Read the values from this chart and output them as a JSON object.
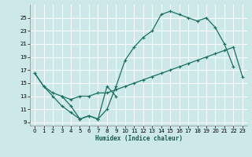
{
  "xlabel": "Humidex (Indice chaleur)",
  "bg_color": "#cce8e8",
  "line_color": "#1a7060",
  "grid_color": "#ffffff",
  "xlim": [
    -0.5,
    23.5
  ],
  "ylim": [
    8.5,
    27.0
  ],
  "yticks": [
    9,
    11,
    13,
    15,
    17,
    19,
    21,
    23,
    25
  ],
  "xticks": [
    0,
    1,
    2,
    3,
    4,
    5,
    6,
    7,
    8,
    9,
    10,
    11,
    12,
    13,
    14,
    15,
    16,
    17,
    18,
    19,
    20,
    21,
    22,
    23
  ],
  "curve1_x": [
    0,
    1,
    2,
    3,
    4,
    5,
    6,
    7,
    8,
    9,
    10,
    11,
    12,
    13,
    14,
    15,
    16,
    17,
    18,
    19,
    20,
    21,
    22
  ],
  "curve1_y": [
    16.5,
    14.5,
    13.0,
    11.5,
    10.5,
    9.5,
    10.0,
    9.5,
    11.0,
    14.5,
    18.5,
    20.5,
    22.0,
    23.0,
    25.5,
    26.0,
    25.5,
    25.0,
    24.5,
    25.0,
    23.5,
    21.0,
    17.5
  ],
  "curve2_x": [
    0,
    1,
    2,
    3,
    4,
    5,
    6,
    7,
    8,
    9,
    10,
    11,
    12,
    13,
    14,
    15,
    16,
    17,
    18,
    19,
    20,
    21,
    22,
    23
  ],
  "curve2_y": [
    16.5,
    14.5,
    13.5,
    13.0,
    12.5,
    13.0,
    13.0,
    13.5,
    13.5,
    14.0,
    14.5,
    15.0,
    15.5,
    16.0,
    16.5,
    17.0,
    17.5,
    18.0,
    18.5,
    19.0,
    19.5,
    20.0,
    20.5,
    16.0
  ],
  "curve3_x": [
    3,
    4,
    5,
    6,
    7,
    8,
    9
  ],
  "curve3_y": [
    13.0,
    11.5,
    9.5,
    10.0,
    9.5,
    14.5,
    13.0
  ]
}
